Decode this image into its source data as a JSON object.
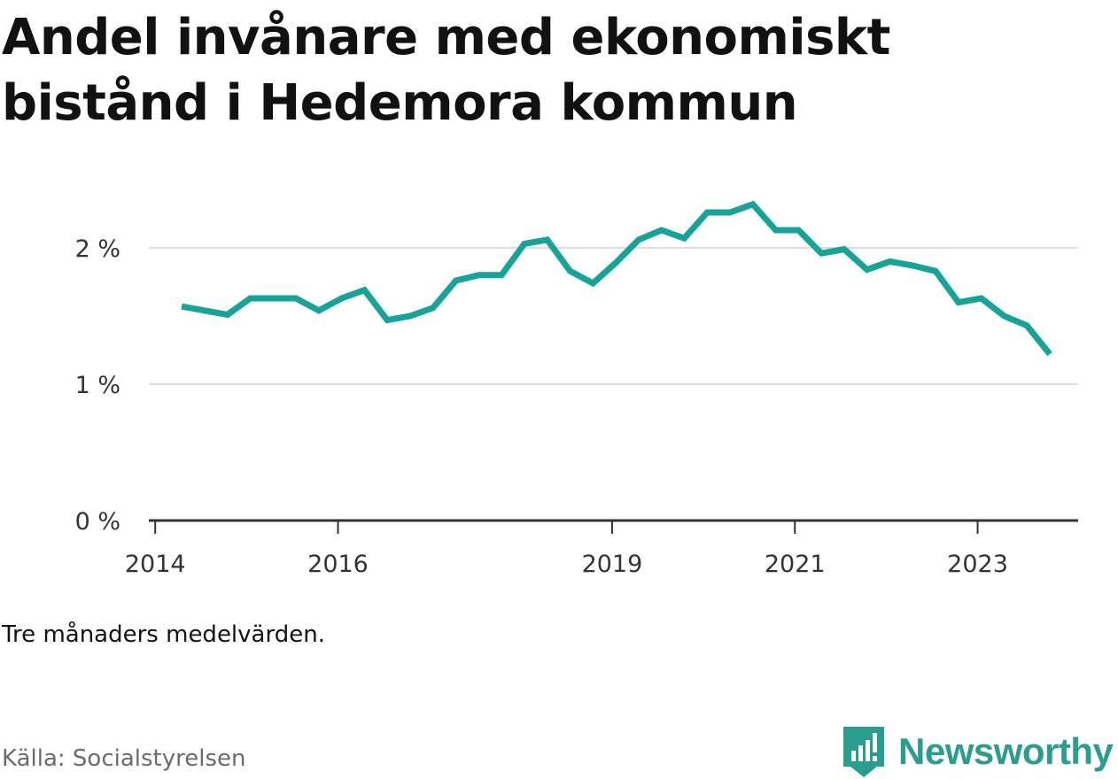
{
  "title": "Andel invånare med ekonomiskt bistånd i Hedemora kommun",
  "note": "Tre månaders medelvärden.",
  "source": "Källa: Socialstyrelsen",
  "brand": {
    "name": "Newsworthy",
    "icon": "newsworthy-logo-icon",
    "color": "#2a9d8f"
  },
  "colors": {
    "line": "#17a398",
    "grid": "#dddddd",
    "axis": "#333333"
  },
  "chart_data": {
    "type": "line",
    "title": "Andel invånare med ekonomiskt bistånd i Hedemora kommun",
    "xlabel": "",
    "ylabel": "",
    "ylim": [
      0,
      2.5
    ],
    "xlim": [
      2013.93,
      2024.1
    ],
    "grid": true,
    "legend": "none",
    "y_ticks": [
      {
        "value": 0,
        "label": "0 %"
      },
      {
        "value": 1,
        "label": "1 %"
      },
      {
        "value": 2,
        "label": "2 %"
      }
    ],
    "x_ticks": [
      {
        "value": 2014,
        "label": "2014"
      },
      {
        "value": 2016,
        "label": "2016"
      },
      {
        "value": 2019,
        "label": "2019"
      },
      {
        "value": 2021,
        "label": "2021"
      },
      {
        "value": 2023,
        "label": "2023"
      }
    ],
    "series": [
      {
        "x": [
          2014.29,
          2014.54,
          2014.79,
          2015.04,
          2015.29,
          2015.54,
          2015.79,
          2016.04,
          2016.29,
          2016.54,
          2016.79,
          2017.04,
          2017.29,
          2017.54,
          2017.79,
          2018.04,
          2018.29,
          2018.54,
          2018.79,
          2019.04,
          2019.29,
          2019.54,
          2019.79,
          2020.04,
          2020.29,
          2020.54,
          2020.79,
          2021.04,
          2021.29,
          2021.54,
          2021.79,
          2022.04,
          2022.29,
          2022.54,
          2022.79,
          2023.04,
          2023.29,
          2023.54,
          2023.79
        ],
        "values": [
          1.57,
          1.54,
          1.51,
          1.63,
          1.63,
          1.63,
          1.54,
          1.63,
          1.69,
          1.47,
          1.5,
          1.56,
          1.76,
          1.8,
          1.8,
          2.03,
          2.06,
          1.83,
          1.74,
          1.89,
          2.06,
          2.13,
          2.07,
          2.26,
          2.26,
          2.32,
          2.13,
          2.13,
          1.96,
          1.99,
          1.84,
          1.9,
          1.87,
          1.83,
          1.6,
          1.63,
          1.5,
          1.43,
          1.22
        ]
      }
    ]
  }
}
